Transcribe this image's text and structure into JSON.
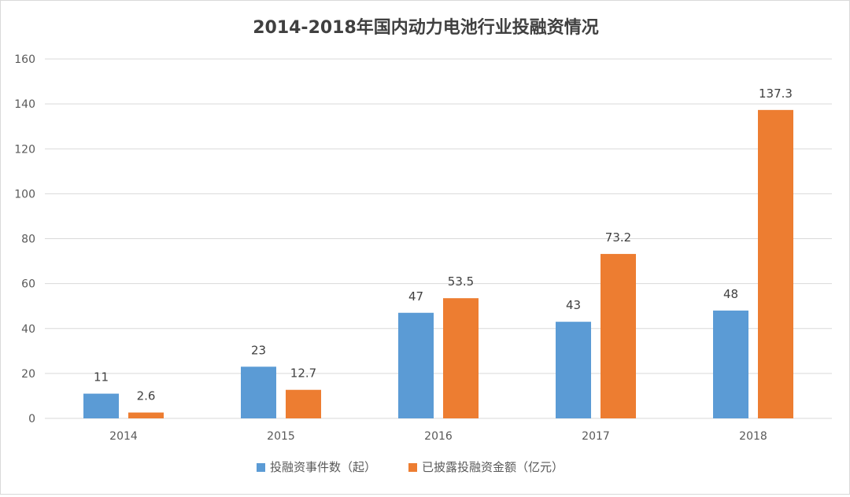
{
  "chart_data": {
    "type": "bar",
    "title": "2014-2018年国内动力电池行业投融资情况",
    "categories": [
      "2014",
      "2015",
      "2016",
      "2017",
      "2018"
    ],
    "series": [
      {
        "name": "投融资事件数（起）",
        "values": [
          11,
          23,
          47,
          43,
          48
        ],
        "labels": [
          "11",
          "23",
          "47",
          "43",
          "48"
        ],
        "color": "#5B9BD5"
      },
      {
        "name": "已披露投融资金额（亿元）",
        "values": [
          2.6,
          12.7,
          53.5,
          73.2,
          137.3
        ],
        "labels": [
          "2.6",
          "12.7",
          "53.5",
          "73.2",
          "137.3"
        ],
        "color": "#ED7D31"
      }
    ],
    "yticks": [
      "0",
      "20",
      "40",
      "60",
      "80",
      "100",
      "120",
      "140",
      "160"
    ],
    "ylim": [
      0,
      160
    ],
    "ystep": 20,
    "xlabel": "",
    "ylabel": "",
    "grid": true,
    "legend_position": "bottom",
    "gridline_color": "#d9d9d9",
    "text_color": "#595959"
  }
}
